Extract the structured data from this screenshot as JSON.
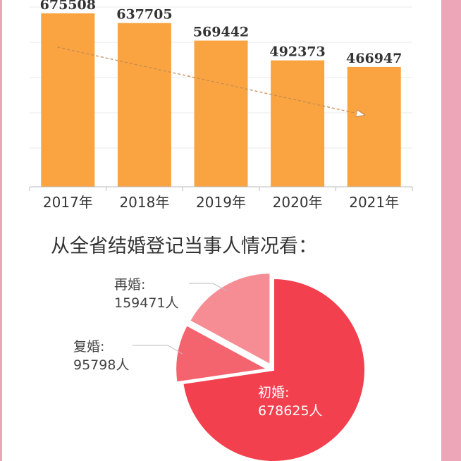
{
  "colors": {
    "bar": "#F9A440",
    "grid": "#E8E8E8",
    "axis": "#BBBBBB",
    "trend": "#C98A55",
    "side_strip": "#EDA6B8",
    "slice_main": "#F2404F",
    "slice_second": "#F4646F",
    "slice_third": "#F68D94"
  },
  "chart_data": [
    {
      "type": "bar",
      "categories": [
        "2017年",
        "2018年",
        "2019年",
        "2020年",
        "2021年"
      ],
      "values": [
        675508,
        637705,
        569442,
        492373,
        466947
      ],
      "value_labels": [
        "675508",
        "637705",
        "569442",
        "492373",
        "466947"
      ],
      "title": "",
      "xlabel": "",
      "ylabel": "",
      "ylim": [
        0,
        700000
      ],
      "grid": true,
      "trend_arrow": true
    },
    {
      "type": "pie",
      "title": "从全省结婚登记当事人情况看：",
      "slices": [
        {
          "name": "初婚",
          "value": 678625,
          "label": "678625人"
        },
        {
          "name": "复婚",
          "value": 95798,
          "label": "95798人"
        },
        {
          "name": "再婚",
          "value": 159471,
          "label": "159471人"
        }
      ]
    }
  ]
}
